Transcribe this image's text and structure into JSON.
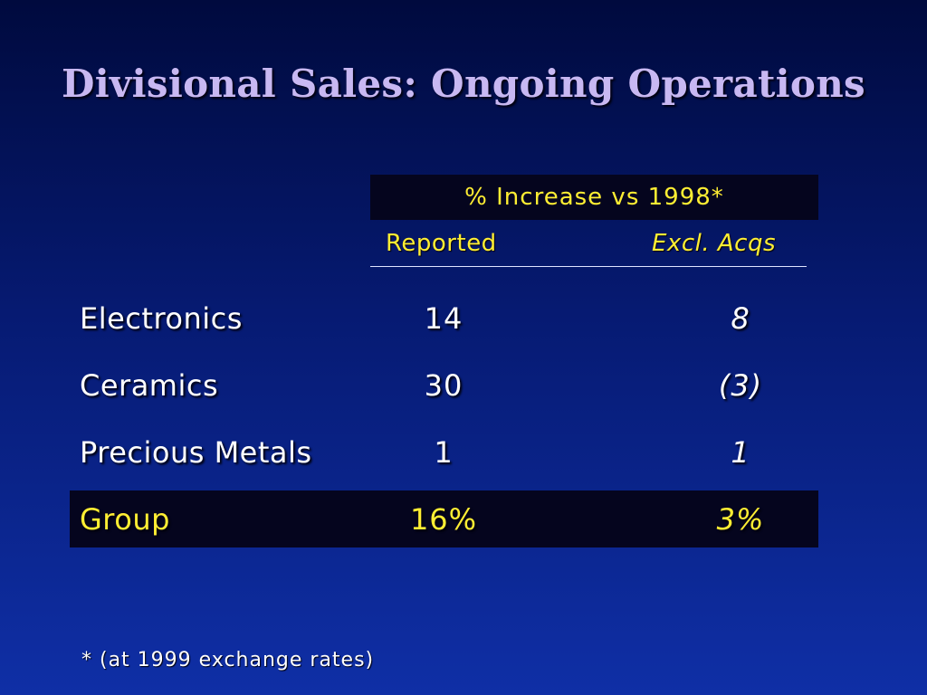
{
  "slide": {
    "title": "Divisional Sales: Ongoing Operations",
    "footnote": "* (at 1999 exchange rates)",
    "colors": {
      "background_top": "#000a3e",
      "background_bottom": "#0f2fa6",
      "title": "#c8b8f2",
      "accent_yellow": "#ffee33",
      "highlight_band": "#05051e",
      "body_text": "#ffffff"
    }
  },
  "table": {
    "header": "% Increase vs 1998*",
    "columns": {
      "reported": "Reported",
      "excl_acqs": "Excl. Acqs"
    },
    "rows": [
      {
        "label": "Electronics",
        "reported": "14",
        "excl_acqs": "8"
      },
      {
        "label": "Ceramics",
        "reported": "30",
        "excl_acqs": "(3)"
      },
      {
        "label": "Precious Metals",
        "reported": "1",
        "excl_acqs": "1"
      }
    ],
    "total": {
      "label": "Group",
      "reported": "16%",
      "excl_acqs": "3%"
    }
  }
}
